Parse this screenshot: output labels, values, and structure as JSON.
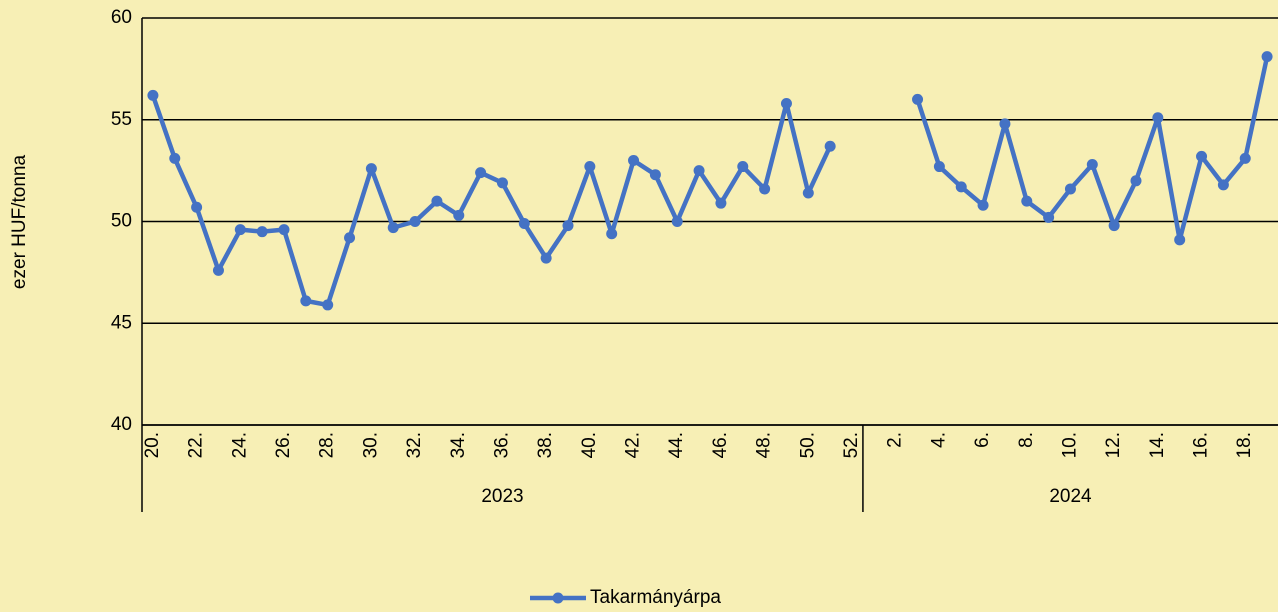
{
  "chart_data": {
    "type": "line",
    "y_label": "ezer HUF/tonna",
    "categories": [
      "20.",
      null,
      "22.",
      null,
      "24.",
      null,
      "26.",
      null,
      "28.",
      null,
      "30.",
      null,
      "32.",
      null,
      "34.",
      null,
      "36.",
      null,
      "38.",
      null,
      "40.",
      null,
      "42.",
      null,
      "44.",
      null,
      "46.",
      null,
      "48.",
      null,
      "50.",
      null,
      "52.",
      null,
      "2.",
      null,
      "4.",
      null,
      "6.",
      null,
      "8.",
      null,
      "10.",
      null,
      "12.",
      null,
      "14.",
      null,
      "16.",
      null,
      "18.",
      null
    ],
    "groups": [
      {
        "label": "2023",
        "span": 33
      },
      {
        "label": "2024",
        "span": 19
      }
    ],
    "series": [
      {
        "name": "Takarmányárpa",
        "color": "#4472c4",
        "values": [
          56.2,
          53.1,
          50.7,
          47.6,
          49.6,
          49.5,
          49.6,
          46.1,
          45.9,
          49.2,
          52.6,
          49.7,
          50.0,
          51.0,
          50.3,
          52.4,
          51.9,
          49.9,
          48.2,
          49.8,
          52.7,
          49.4,
          53.0,
          52.3,
          50.0,
          52.5,
          50.9,
          52.7,
          51.6,
          55.8,
          51.4,
          53.7,
          null,
          null,
          null,
          56.0,
          52.7,
          51.7,
          50.8,
          54.8,
          51.0,
          50.2,
          51.6,
          52.8,
          49.8,
          52.0,
          55.1,
          49.1,
          53.2,
          51.8,
          53.1,
          58.1
        ]
      }
    ],
    "ylim": [
      40,
      60
    ],
    "yticks": [
      40,
      45,
      50,
      55,
      60
    ],
    "grid": true,
    "legend": "bottom"
  }
}
